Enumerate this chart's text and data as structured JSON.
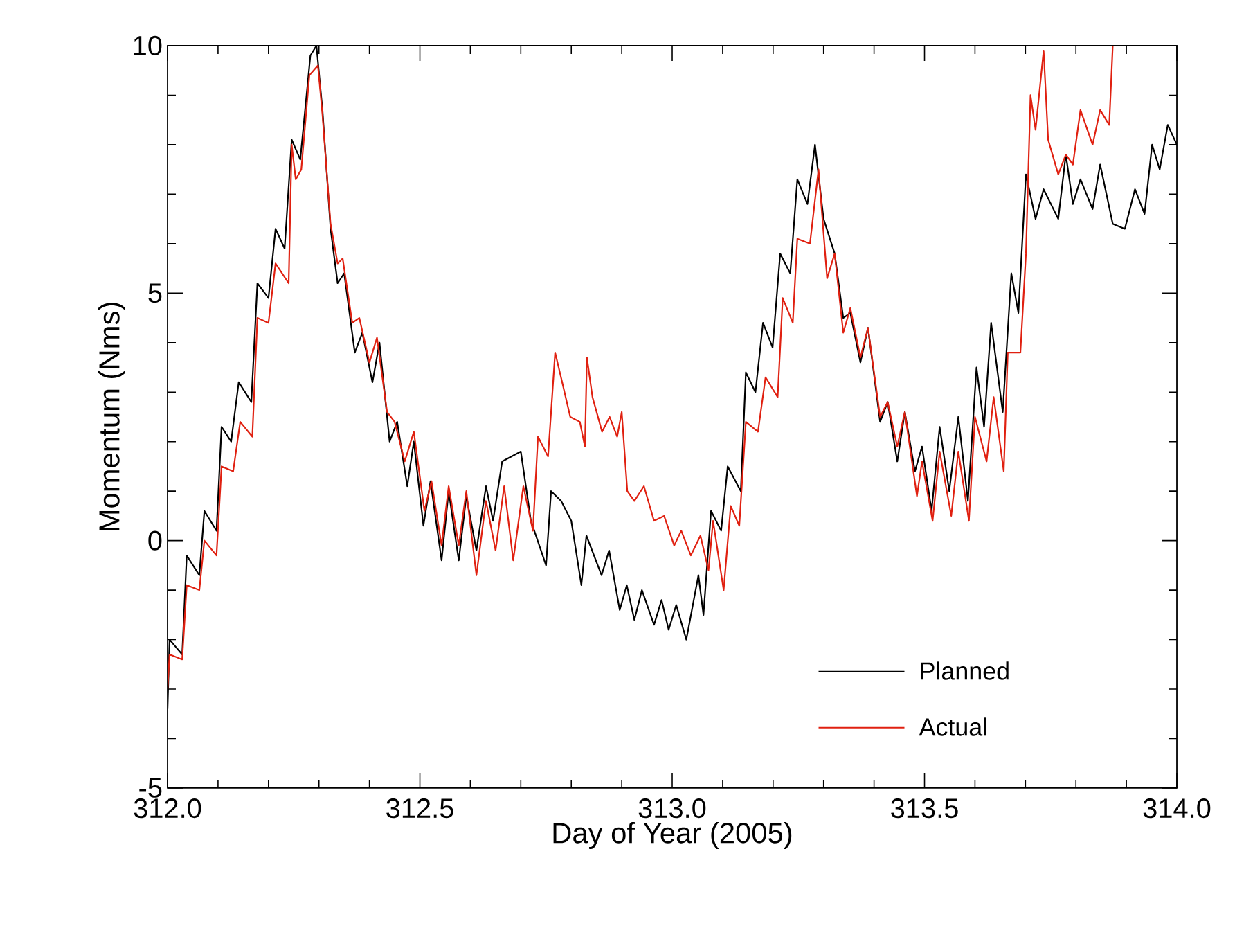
{
  "chart_data": {
    "type": "line",
    "xlabel": "Day of Year (2005)",
    "ylabel": "Momentum (Nms)",
    "xlim": [
      312.0,
      314.0
    ],
    "ylim": [
      -5,
      10
    ],
    "xticks": [
      {
        "value": 312.0,
        "label": "312.0"
      },
      {
        "value": 312.1,
        "label": null
      },
      {
        "value": 312.2,
        "label": null
      },
      {
        "value": 312.3,
        "label": null
      },
      {
        "value": 312.4,
        "label": null
      },
      {
        "value": 312.5,
        "label": "312.5"
      },
      {
        "value": 312.6,
        "label": null
      },
      {
        "value": 312.7,
        "label": null
      },
      {
        "value": 312.8,
        "label": null
      },
      {
        "value": 312.9,
        "label": null
      },
      {
        "value": 313.0,
        "label": "313.0"
      },
      {
        "value": 313.1,
        "label": null
      },
      {
        "value": 313.2,
        "label": null
      },
      {
        "value": 313.3,
        "label": null
      },
      {
        "value": 313.4,
        "label": null
      },
      {
        "value": 313.5,
        "label": "313.5"
      },
      {
        "value": 313.6,
        "label": null
      },
      {
        "value": 313.7,
        "label": null
      },
      {
        "value": 313.8,
        "label": null
      },
      {
        "value": 313.9,
        "label": null
      },
      {
        "value": 314.0,
        "label": "314.0"
      }
    ],
    "yticks": [
      -5,
      {
        "value": -4,
        "label": null
      },
      {
        "value": -3,
        "label": null
      },
      {
        "value": -2,
        "label": null
      },
      {
        "value": -1,
        "label": null
      },
      0,
      {
        "value": 1,
        "label": null
      },
      {
        "value": 2,
        "label": null
      },
      {
        "value": 3,
        "label": null
      },
      {
        "value": 4,
        "label": null
      },
      5,
      {
        "value": 6,
        "label": null
      },
      {
        "value": 7,
        "label": null
      },
      {
        "value": 8,
        "label": null
      },
      {
        "value": 9,
        "label": null
      },
      10
    ],
    "legend": "bottom right",
    "grid": false,
    "marker": "none",
    "line_style": "solid",
    "series": [
      {
        "name": "Planned",
        "color": "#000000",
        "x": [
          312.0,
          312.004,
          312.029,
          312.038,
          312.063,
          312.073,
          312.097,
          312.107,
          312.126,
          312.141,
          312.166,
          312.178,
          312.2,
          312.214,
          312.232,
          312.246,
          312.263,
          312.283,
          312.295,
          312.307,
          312.323,
          312.337,
          312.35,
          312.371,
          312.386,
          312.406,
          312.42,
          312.44,
          312.455,
          312.475,
          312.488,
          312.507,
          312.521,
          312.543,
          312.557,
          312.577,
          312.592,
          312.612,
          312.631,
          312.645,
          312.663,
          312.7,
          312.72,
          312.75,
          312.76,
          312.78,
          312.8,
          312.82,
          312.83,
          312.86,
          312.875,
          312.896,
          312.91,
          312.925,
          312.94,
          312.964,
          312.979,
          312.993,
          313.008,
          313.028,
          313.052,
          313.062,
          313.077,
          313.097,
          313.11,
          313.136,
          313.146,
          313.165,
          313.18,
          313.199,
          313.214,
          313.234,
          313.248,
          313.268,
          313.283,
          313.3,
          313.322,
          313.339,
          313.353,
          313.373,
          313.388,
          313.412,
          313.427,
          313.446,
          313.461,
          313.481,
          313.495,
          313.514,
          313.53,
          313.549,
          313.567,
          313.586,
          313.603,
          313.618,
          313.632,
          313.655,
          313.672,
          313.686,
          313.701,
          313.72,
          313.736,
          313.765,
          313.78,
          313.794,
          313.809,
          313.833,
          313.848,
          313.873,
          313.897,
          313.917,
          313.936,
          313.951,
          313.966,
          313.982,
          314.0
        ],
        "values": [
          -3.4,
          -2.0,
          -2.3,
          -0.3,
          -0.7,
          0.6,
          0.2,
          2.3,
          2.0,
          3.2,
          2.8,
          5.2,
          4.9,
          6.3,
          5.9,
          8.1,
          7.7,
          9.8,
          10.0,
          8.7,
          6.3,
          5.2,
          5.4,
          3.8,
          4.2,
          3.2,
          4.0,
          2.0,
          2.4,
          1.1,
          2.0,
          0.3,
          1.2,
          -0.4,
          1.0,
          -0.4,
          0.9,
          -0.2,
          1.1,
          0.4,
          1.6,
          1.8,
          0.4,
          -0.5,
          1.0,
          0.8,
          0.4,
          -0.9,
          0.1,
          -0.7,
          -0.2,
          -1.4,
          -0.9,
          -1.6,
          -1.0,
          -1.7,
          -1.2,
          -1.8,
          -1.3,
          -2.0,
          -0.7,
          -1.5,
          0.6,
          0.2,
          1.5,
          1.0,
          3.4,
          3.0,
          4.4,
          3.9,
          5.8,
          5.4,
          7.3,
          6.8,
          8.0,
          6.5,
          5.8,
          4.5,
          4.6,
          3.6,
          4.3,
          2.4,
          2.8,
          1.6,
          2.6,
          1.4,
          1.9,
          0.6,
          2.3,
          1.0,
          2.5,
          0.8,
          3.5,
          2.3,
          4.4,
          2.6,
          5.4,
          4.6,
          7.4,
          6.5,
          7.1,
          6.5,
          7.8,
          6.8,
          7.3,
          6.7,
          7.6,
          6.4,
          6.3,
          7.1,
          6.6,
          8.0,
          7.5,
          8.4,
          8.0
        ]
      },
      {
        "name": "Actual",
        "color": "#e02010",
        "x": [
          312.0,
          312.004,
          312.029,
          312.038,
          312.063,
          312.073,
          312.097,
          312.107,
          312.13,
          312.144,
          312.168,
          312.178,
          312.2,
          312.214,
          312.24,
          312.246,
          312.254,
          312.265,
          312.281,
          312.298,
          312.307,
          312.323,
          312.337,
          312.347,
          312.366,
          312.38,
          312.4,
          312.415,
          312.435,
          312.45,
          312.47,
          312.488,
          312.509,
          312.523,
          312.543,
          312.557,
          312.577,
          312.592,
          312.612,
          312.631,
          312.65,
          312.667,
          312.685,
          312.705,
          312.724,
          312.734,
          312.754,
          312.768,
          312.782,
          312.798,
          312.817,
          312.827,
          312.831,
          312.842,
          312.861,
          312.876,
          312.891,
          312.9,
          312.911,
          312.925,
          312.944,
          312.964,
          312.984,
          313.004,
          313.018,
          313.037,
          313.056,
          313.072,
          313.081,
          313.102,
          313.116,
          313.133,
          313.146,
          313.17,
          313.185,
          313.209,
          313.219,
          313.239,
          313.248,
          313.273,
          313.29,
          313.307,
          313.322,
          313.339,
          313.353,
          313.373,
          313.388,
          313.412,
          313.427,
          313.446,
          313.461,
          313.485,
          313.495,
          313.516,
          313.53,
          313.553,
          313.567,
          313.588,
          313.6,
          313.623,
          313.637,
          313.657,
          313.665,
          313.69,
          313.701,
          313.71,
          313.72,
          313.736,
          313.745,
          313.765,
          313.78,
          313.794,
          313.809,
          313.833,
          313.848,
          313.866,
          313.873
        ],
        "values": [
          -3.0,
          -2.3,
          -2.4,
          -0.9,
          -1.0,
          0.0,
          -0.3,
          1.5,
          1.4,
          2.4,
          2.1,
          4.5,
          4.4,
          5.6,
          5.2,
          8.0,
          7.3,
          7.5,
          9.4,
          9.6,
          8.6,
          6.4,
          5.6,
          5.7,
          4.4,
          4.5,
          3.6,
          4.1,
          2.6,
          2.4,
          1.6,
          2.2,
          0.6,
          1.2,
          -0.1,
          1.1,
          -0.1,
          1.0,
          -0.7,
          0.8,
          -0.2,
          1.1,
          -0.4,
          1.1,
          0.2,
          2.1,
          1.7,
          3.8,
          3.2,
          2.5,
          2.4,
          1.9,
          3.7,
          2.9,
          2.2,
          2.5,
          2.1,
          2.6,
          1.0,
          0.8,
          1.1,
          0.4,
          0.5,
          -0.1,
          0.2,
          -0.3,
          0.1,
          -0.6,
          0.4,
          -1.0,
          0.7,
          0.3,
          2.4,
          2.2,
          3.3,
          2.9,
          4.9,
          4.4,
          6.1,
          6.0,
          7.5,
          5.3,
          5.8,
          4.2,
          4.7,
          3.7,
          4.3,
          2.5,
          2.8,
          1.9,
          2.6,
          0.9,
          1.6,
          0.4,
          1.8,
          0.5,
          1.8,
          0.4,
          2.5,
          1.6,
          2.9,
          1.4,
          3.8,
          3.8,
          5.8,
          9.0,
          8.3,
          9.9,
          8.1,
          7.4,
          7.8,
          7.6,
          8.7,
          8.0,
          8.7,
          8.4,
          10.0
        ]
      }
    ]
  }
}
